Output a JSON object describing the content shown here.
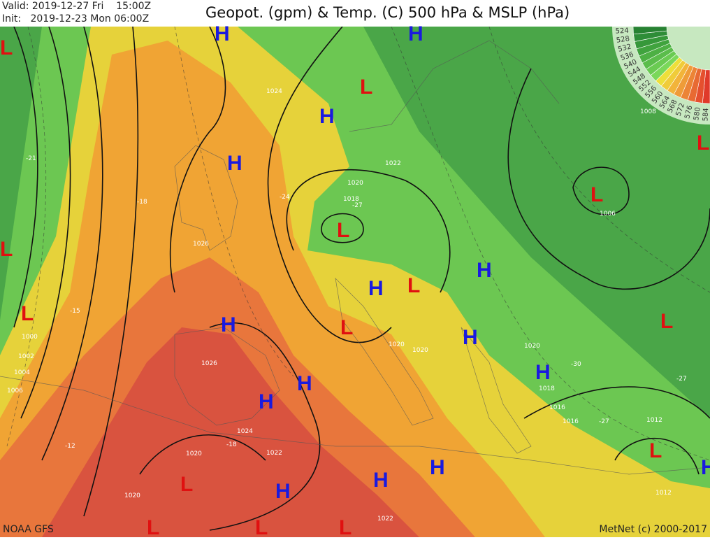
{
  "header": {
    "valid": "Valid: 2019-12-27 Fri    15:00Z",
    "init": "Init:   2019-12-23 Mon 06:00Z",
    "title": "Geopot. (gpm) & Temp. (C) 500 hPa & MSLP (hPa)"
  },
  "footer": {
    "source": "NOAA GFS",
    "credit": "MetNet (c) 2000-2017"
  },
  "legend": {
    "values": [
      "584",
      "580",
      "576",
      "572",
      "568",
      "564",
      "560",
      "556",
      "552",
      "548",
      "544",
      "540",
      "536",
      "532",
      "528",
      "524"
    ],
    "colors": [
      "#e03a2a",
      "#e5502e",
      "#e86a32",
      "#ec8436",
      "#ef9c38",
      "#f2b43a",
      "#f0cc3a",
      "#eedf3a",
      "#7ad85a",
      "#6acb52",
      "#5bbd4b",
      "#4db044",
      "#40a33e",
      "#36983a",
      "#2e8d38",
      "#278232"
    ]
  },
  "colors": {
    "cold": "#4aa648",
    "cool": "#7ed65a",
    "mild": "#e6d23a",
    "warm": "#f0a434",
    "hot": "#e8763c",
    "very_hot": "#d9533f",
    "high": "#1a1adf",
    "low": "#e01010"
  },
  "pressure_centers": [
    "H",
    "H",
    "H",
    "H",
    "H",
    "H",
    "H",
    "H",
    "H",
    "H",
    "H",
    "H",
    "H",
    "H",
    "H",
    "L",
    "L",
    "L",
    "L",
    "L",
    "L",
    "L",
    "L",
    "L",
    "L",
    "L",
    "L",
    "L",
    "L",
    "L"
  ],
  "isobar_labels": [
    "1024",
    "1022",
    "1020",
    "1018",
    "1026",
    "1026",
    "1024",
    "1022",
    "1020",
    "1020",
    "1020",
    "1020",
    "1020",
    "1018",
    "1016",
    "1016",
    "1012",
    "1008",
    "1006",
    "1000",
    "1002",
    "1004",
    "1006",
    "1022",
    "1012",
    "-24",
    "-27",
    "-18",
    "-21",
    "-15",
    "-12",
    "-18",
    "-27",
    "-27",
    "-30"
  ]
}
